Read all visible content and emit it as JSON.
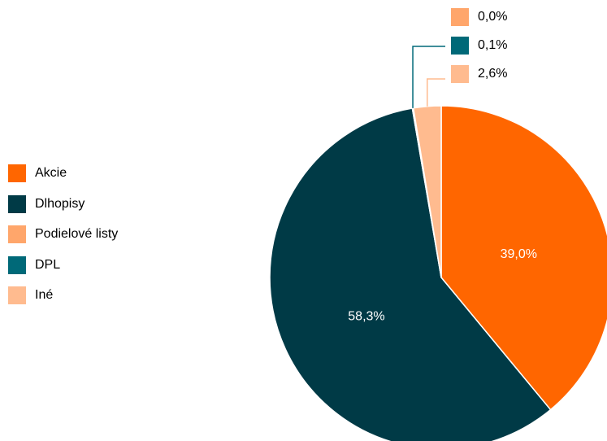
{
  "chart_data": {
    "type": "pie",
    "title": "",
    "legend_placement": "left",
    "slices": [
      {
        "label": "Akcie",
        "value": 39.0,
        "value_text": "39,0%",
        "color": "#ff6600"
      },
      {
        "label": "Dlhopisy",
        "value": 58.3,
        "value_text": "58,3%",
        "color": "#003a46"
      },
      {
        "label": "Podielové listy",
        "value": 0.0,
        "value_text": "0,0%",
        "color": "#ffa66b"
      },
      {
        "label": "DPL",
        "value": 0.1,
        "value_text": "0,1%",
        "color": "#006978"
      },
      {
        "label": "Iné",
        "value": 2.6,
        "value_text": "2,6%",
        "color": "#ffbb8f"
      }
    ]
  }
}
